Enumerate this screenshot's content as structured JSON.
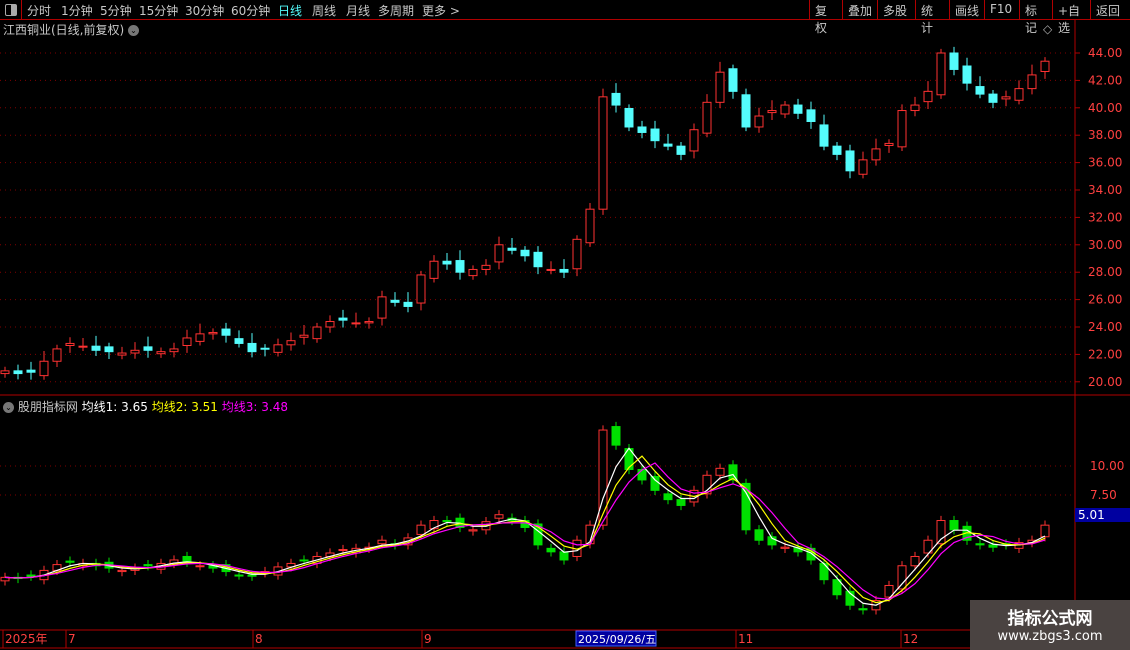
{
  "toolbar": {
    "periods": [
      "分时",
      "1分钟",
      "5分钟",
      "15分钟",
      "30分钟",
      "60分钟",
      "日线",
      "周线",
      "月线",
      "多周期",
      "更多 >"
    ],
    "active": "日线",
    "right_buttons": [
      "复权",
      "叠加",
      "多股",
      "统计",
      "画线",
      "F10",
      "标记",
      "+自选",
      "返回"
    ]
  },
  "title": "江西铜业(日线,前复权)",
  "indicator": {
    "name": "股朋指标网",
    "ma1": "均线1: 3.65",
    "ma2": "均线2: 3.51",
    "ma3": "均线3: 3.48",
    "current": "5.01"
  },
  "colors": {
    "up": "#ff3232",
    "down_main": "#54fcfc",
    "down_sub": "#00e000",
    "ma1": "#ffffff",
    "ma2": "#ffff00",
    "ma3": "#ff00ff",
    "grid": "#800000"
  },
  "price_axis": [
    "44.00",
    "42.00",
    "40.00",
    "38.00",
    "36.00",
    "34.00",
    "32.00",
    "30.00",
    "28.00",
    "26.00",
    "24.00",
    "22.00",
    "20.00"
  ],
  "sub_axis": [
    "10.00",
    "7.50"
  ],
  "time_axis": {
    "labels": [
      "2025年",
      "7",
      "8",
      "9",
      "11",
      "12"
    ],
    "cursor": "2025/09/26/五"
  },
  "watermark": {
    "title": "指标公式网",
    "url": "www.zbgs3.com"
  },
  "chart_data": {
    "type": "candlestick",
    "close": [
      20.8,
      20.6,
      20.7,
      21.5,
      22.4,
      22.8,
      22.6,
      22.3,
      22.2,
      22.1,
      22.3,
      22.3,
      22.2,
      22.4,
      23.2,
      23.5,
      23.6,
      23.4,
      22.8,
      22.2,
      22.4,
      22.7,
      23.0,
      23.4,
      24.0,
      24.4,
      24.5,
      24.3,
      24.4,
      26.2,
      25.8,
      25.5,
      27.8,
      28.8,
      28.6,
      28.0,
      28.2,
      28.5,
      30.0,
      29.6,
      29.2,
      28.4,
      28.2,
      28.0,
      30.4,
      32.6,
      40.8,
      40.2,
      38.6,
      38.2,
      37.6,
      37.2,
      36.6,
      38.4,
      40.4,
      42.6,
      41.2,
      38.6,
      39.4,
      39.8,
      40.2,
      39.6,
      39.0,
      37.2,
      36.6,
      35.4,
      36.2,
      37.0,
      37.4,
      39.8,
      40.2,
      41.2,
      44.0,
      42.8,
      41.8,
      41.0,
      40.4,
      40.8,
      41.4,
      42.4,
      43.4
    ],
    "indicator": [
      0.4,
      0.3,
      0.5,
      1.0,
      1.5,
      1.7,
      1.6,
      1.4,
      1.2,
      1.0,
      1.2,
      1.4,
      1.6,
      1.9,
      1.7,
      1.4,
      1.2,
      0.9,
      0.6,
      0.5,
      0.9,
      1.3,
      1.6,
      1.9,
      2.2,
      2.5,
      2.8,
      2.9,
      3.0,
      3.6,
      3.2,
      3.8,
      4.9,
      5.3,
      5.2,
      4.7,
      4.5,
      5.2,
      5.8,
      5.3,
      4.7,
      3.2,
      2.6,
      1.9,
      3.6,
      4.9,
      13.1,
      11.8,
      9.7,
      8.8,
      7.9,
      7.1,
      6.6,
      7.9,
      9.2,
      9.8,
      8.8,
      4.5,
      3.6,
      3.2,
      3.0,
      2.6,
      1.9,
      0.2,
      -1.1,
      -2.0,
      -2.4,
      -1.6,
      -0.3,
      1.4,
      2.2,
      3.6,
      5.3,
      4.5,
      3.6,
      3.2,
      3.0,
      3.2,
      3.4,
      3.6,
      4.9
    ],
    "ylim": [
      20,
      44
    ]
  }
}
